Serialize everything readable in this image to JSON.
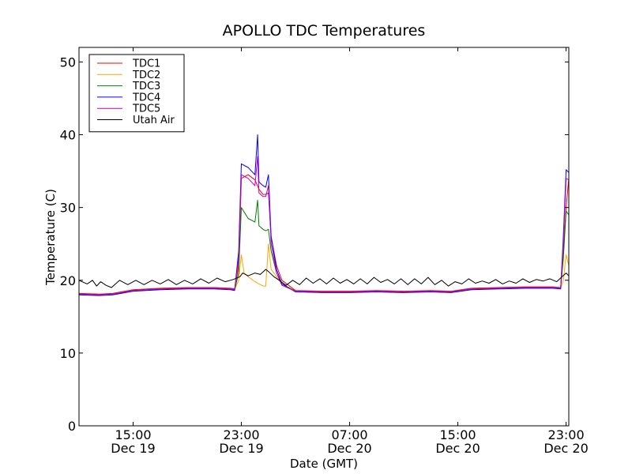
{
  "chart_data": {
    "type": "line",
    "title": "APOLLO TDC Temperatures",
    "xlabel": "Date (GMT)",
    "ylabel": "Temperature (C)",
    "x_unit": "hours since Dec 19 11:00 GMT",
    "xlim": [
      0,
      36.2
    ],
    "ylim": [
      0,
      52
    ],
    "yticks": [
      0,
      10,
      20,
      30,
      40,
      50
    ],
    "xticks": [
      {
        "x": 4,
        "time": "15:00",
        "date": "Dec 19"
      },
      {
        "x": 12,
        "time": "23:00",
        "date": "Dec 19"
      },
      {
        "x": 20,
        "time": "07:00",
        "date": "Dec 20"
      },
      {
        "x": 28,
        "time": "15:00",
        "date": "Dec 20"
      },
      {
        "x": 36,
        "time": "23:00",
        "date": "Dec 20"
      }
    ],
    "legend_position": "top-left",
    "series": [
      {
        "name": "TDC1",
        "color": "#ff0000",
        "x": [
          0,
          1.5,
          2.5,
          4,
          6,
          8,
          10,
          11.2,
          11.5,
          11.8,
          12,
          12.5,
          13,
          13.3,
          13.6,
          13.8,
          14,
          14.2,
          14.6,
          15,
          16,
          18,
          20,
          22,
          24,
          26,
          27.5,
          29,
          31,
          33,
          35,
          35.6,
          35.8,
          36.0,
          36.2
        ],
        "values": [
          18.2,
          18.1,
          18.2,
          18.7,
          18.9,
          19.0,
          19.0,
          18.9,
          18.8,
          22,
          34,
          34.5,
          33.8,
          32.5,
          31.8,
          31.8,
          32,
          26,
          22,
          20,
          18.6,
          18.5,
          18.5,
          18.6,
          18.5,
          18.6,
          18.5,
          18.9,
          19.0,
          19.1,
          19.1,
          19.0,
          24,
          30,
          34
        ]
      },
      {
        "name": "TDC2",
        "color": "#ffa500",
        "x": [
          0,
          1.5,
          2.5,
          4,
          6,
          8,
          10,
          11.2,
          11.5,
          11.8,
          12,
          12.2,
          12.5,
          13,
          13.3,
          13.6,
          13.8,
          14,
          14.2,
          14.6,
          15,
          16,
          18,
          20,
          22,
          24,
          26,
          27.5,
          29,
          31,
          33,
          35,
          35.6,
          35.8,
          36.0,
          36.2
        ],
        "values": [
          18.1,
          18.0,
          18.1,
          18.6,
          18.8,
          18.9,
          18.9,
          18.8,
          18.7,
          20,
          23.5,
          21,
          20.5,
          19.8,
          19.5,
          19.2,
          19.2,
          25,
          21.5,
          20.5,
          19.5,
          18.5,
          18.4,
          18.4,
          18.5,
          18.4,
          18.5,
          18.4,
          18.8,
          18.9,
          19.0,
          19.0,
          18.9,
          20,
          23.5,
          22
        ]
      },
      {
        "name": "TDC3",
        "color": "#008000",
        "x": [
          0,
          1.5,
          2.5,
          4,
          6,
          8,
          10,
          11.2,
          11.5,
          11.8,
          12,
          12.5,
          13,
          13.2,
          13.3,
          13.6,
          13.8,
          14,
          14.2,
          14.6,
          15,
          16,
          18,
          20,
          22,
          24,
          26,
          27.5,
          29,
          31,
          33,
          35,
          35.6,
          35.8,
          36.0,
          36.2
        ],
        "values": [
          18.1,
          18.0,
          18.1,
          18.6,
          18.8,
          18.9,
          18.9,
          18.8,
          18.7,
          21,
          30,
          28.5,
          28.0,
          31,
          27.5,
          27.0,
          26.8,
          27,
          24,
          21,
          19.5,
          18.5,
          18.4,
          18.4,
          18.5,
          18.4,
          18.5,
          18.4,
          18.8,
          18.9,
          19.0,
          19.0,
          18.9,
          23,
          29.5,
          29
        ]
      },
      {
        "name": "TDC4",
        "color": "#0000ff",
        "x": [
          0,
          1.5,
          2.5,
          4,
          6,
          8,
          10,
          11.2,
          11.5,
          11.8,
          12,
          12.5,
          13,
          13.2,
          13.3,
          13.6,
          13.8,
          14,
          14.2,
          14.6,
          15,
          16,
          18,
          20,
          22,
          24,
          26,
          27.5,
          29,
          31,
          33,
          35,
          35.6,
          35.8,
          36.0,
          36.2
        ],
        "values": [
          18.0,
          17.9,
          18.0,
          18.5,
          18.7,
          18.8,
          18.8,
          18.7,
          18.6,
          24,
          36,
          35.5,
          34.5,
          40,
          33.5,
          33.0,
          32.8,
          34.5,
          26,
          21.5,
          19.5,
          18.4,
          18.3,
          18.3,
          18.4,
          18.3,
          18.4,
          18.3,
          18.7,
          18.8,
          18.9,
          18.9,
          18.8,
          26,
          35.2,
          34.8
        ]
      },
      {
        "name": "TDC5",
        "color": "#bf00bf",
        "x": [
          0,
          1.5,
          2.5,
          4,
          6,
          8,
          10,
          11.2,
          11.5,
          11.8,
          12,
          12.5,
          13,
          13.2,
          13.3,
          13.6,
          13.8,
          14,
          14.2,
          14.6,
          15,
          16,
          18,
          20,
          22,
          24,
          26,
          27.5,
          29,
          31,
          33,
          35,
          35.6,
          35.8,
          36.0,
          36.2
        ],
        "values": [
          18.1,
          18.0,
          18.1,
          18.6,
          18.8,
          18.9,
          18.9,
          18.8,
          18.7,
          23,
          34.5,
          34.0,
          33.0,
          37,
          32.0,
          31.5,
          31.5,
          33,
          25,
          21,
          19.3,
          18.5,
          18.4,
          18.4,
          18.5,
          18.4,
          18.5,
          18.4,
          18.8,
          18.9,
          19.0,
          19.0,
          18.9,
          25,
          34.0,
          33.8
        ]
      },
      {
        "name": "Utah Air",
        "color": "#000000",
        "x": [
          0,
          0.6,
          1.0,
          1.3,
          1.6,
          2.0,
          2.4,
          3.0,
          3.6,
          4.2,
          4.8,
          5.4,
          6.0,
          6.6,
          7.2,
          7.8,
          8.4,
          9.0,
          9.6,
          10.2,
          10.8,
          11.4,
          11.9,
          12.1,
          12.5,
          13.0,
          13.4,
          13.8,
          14.0,
          14.4,
          14.8,
          15.3,
          15.8,
          16.3,
          16.8,
          17.3,
          17.8,
          18.3,
          18.8,
          19.3,
          19.8,
          20.3,
          20.8,
          21.3,
          21.8,
          22.3,
          22.8,
          23.3,
          23.8,
          24.3,
          24.8,
          25.3,
          25.8,
          26.3,
          26.8,
          27.3,
          27.8,
          28.3,
          28.8,
          29.3,
          29.8,
          30.3,
          30.8,
          31.3,
          31.8,
          32.3,
          32.8,
          33.3,
          33.8,
          34.3,
          34.8,
          35.3,
          35.7,
          36.0,
          36.2
        ],
        "values": [
          20.0,
          19.5,
          20.0,
          19.2,
          19.8,
          19.3,
          19.0,
          20.0,
          19.4,
          20.0,
          19.4,
          20.0,
          19.5,
          20.1,
          19.4,
          20.0,
          19.5,
          20.2,
          19.6,
          20.3,
          19.8,
          20.1,
          20.5,
          21.0,
          20.6,
          21.0,
          20.8,
          21.5,
          21.2,
          20.5,
          20.0,
          19.3,
          20.0,
          19.4,
          20.3,
          19.6,
          20.2,
          19.5,
          20.3,
          19.6,
          20.1,
          19.5,
          20.2,
          19.5,
          20.4,
          19.7,
          20.1,
          19.5,
          20.2,
          19.4,
          20.2,
          19.5,
          20.4,
          19.4,
          20.0,
          19.2,
          19.8,
          19.5,
          20.2,
          19.6,
          19.9,
          19.6,
          20.1,
          19.5,
          19.9,
          19.6,
          20.2,
          19.7,
          20.1,
          19.9,
          20.2,
          19.8,
          20.5,
          21.0,
          20.6
        ]
      }
    ]
  }
}
